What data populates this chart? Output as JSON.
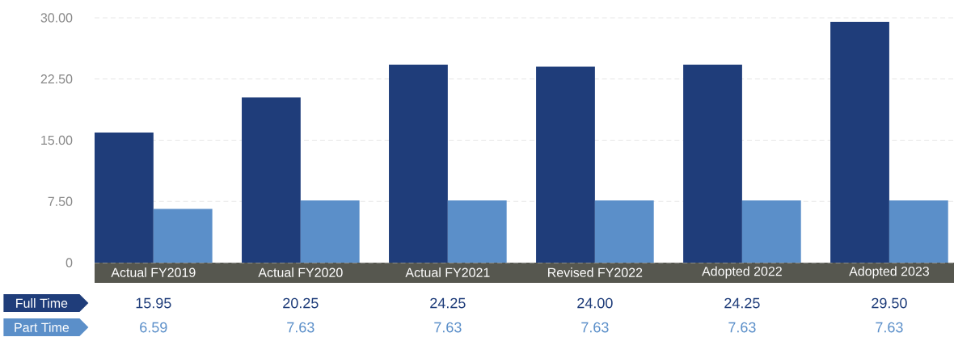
{
  "chart_data": {
    "type": "bar",
    "categories": [
      "Actual FY2019",
      "Actual FY2020",
      "Actual FY2021",
      "Revised FY2022",
      "Adopted 2022",
      "Adopted 2023"
    ],
    "series": [
      {
        "name": "Full Time",
        "color": "#1f3d7a",
        "values": [
          15.95,
          20.25,
          24.25,
          24.0,
          24.25,
          29.5
        ],
        "value_labels": [
          "15.95",
          "20.25",
          "24.25",
          "24.00",
          "24.25",
          "29.50"
        ]
      },
      {
        "name": "Part Time",
        "color": "#5b8fc9",
        "values": [
          6.59,
          7.63,
          7.63,
          7.63,
          7.63,
          7.63
        ],
        "value_labels": [
          "6.59",
          "7.63",
          "7.63",
          "7.63",
          "7.63",
          "7.63"
        ]
      }
    ],
    "ylim": [
      0,
      30
    ],
    "yticks": [
      0,
      {
        "value": 7.5,
        "label": "7.50"
      },
      {
        "value": 15,
        "label": "15.00"
      },
      {
        "value": 22.5,
        "label": "22.50"
      },
      {
        "value": 30,
        "label": "30.00"
      }
    ],
    "grid": "y",
    "legend": "bottom left"
  }
}
